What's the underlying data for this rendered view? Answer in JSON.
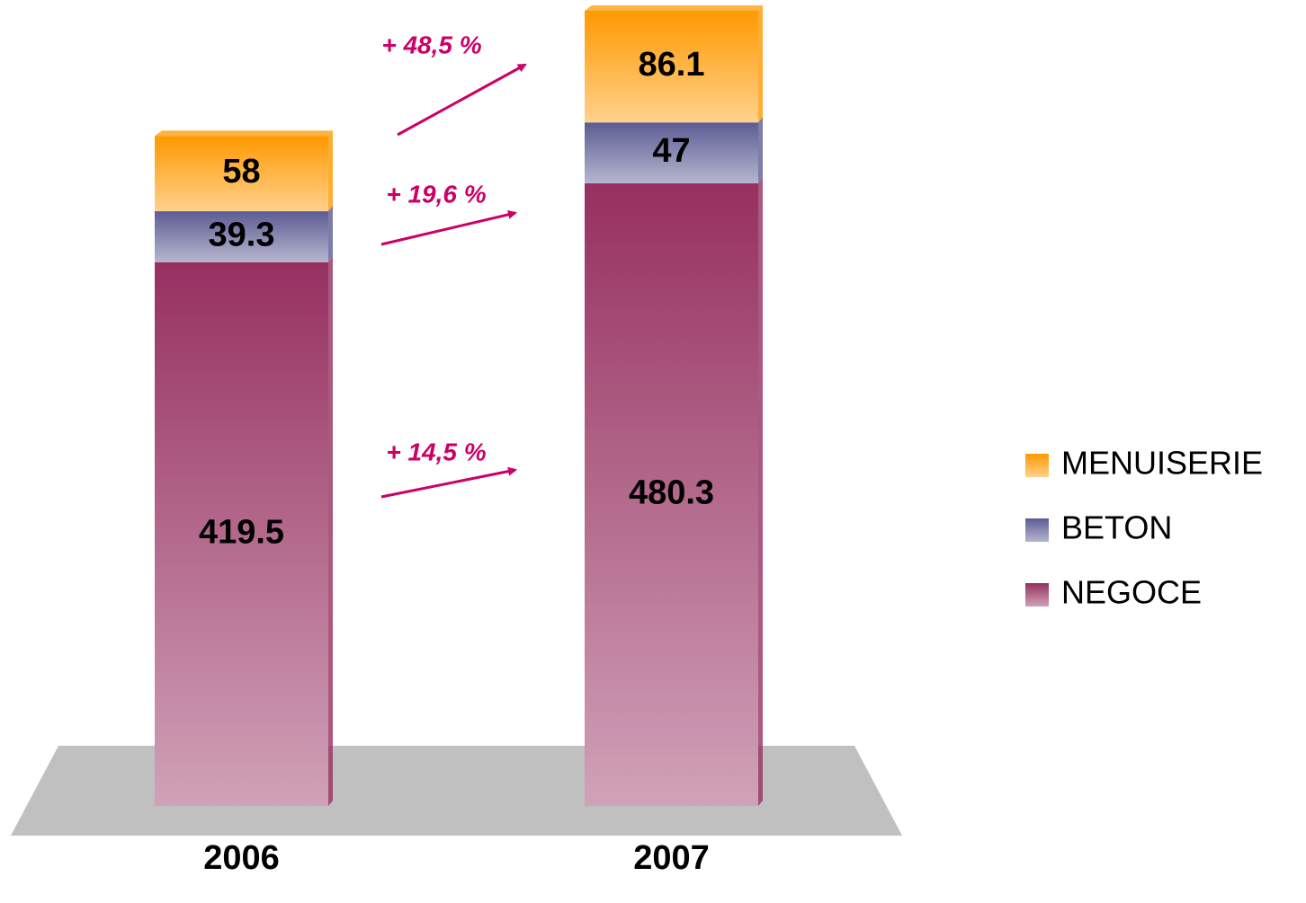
{
  "chart_data": {
    "type": "stacked_bar",
    "categories": [
      "2006",
      "2007"
    ],
    "series": [
      {
        "name": "NEGOCE",
        "color": "#963060",
        "values": [
          419.5,
          480.3
        ]
      },
      {
        "name": "BETON",
        "color": "#5c5c94",
        "values": [
          39.3,
          47
        ]
      },
      {
        "name": "MENUISERIE",
        "color": "#ff9900",
        "values": [
          58,
          86.1
        ]
      }
    ],
    "annotations": [
      "+ 14,5 %",
      "+ 19,6 %",
      "+ 48,5 %"
    ],
    "annotation_color": "#cc0066"
  }
}
